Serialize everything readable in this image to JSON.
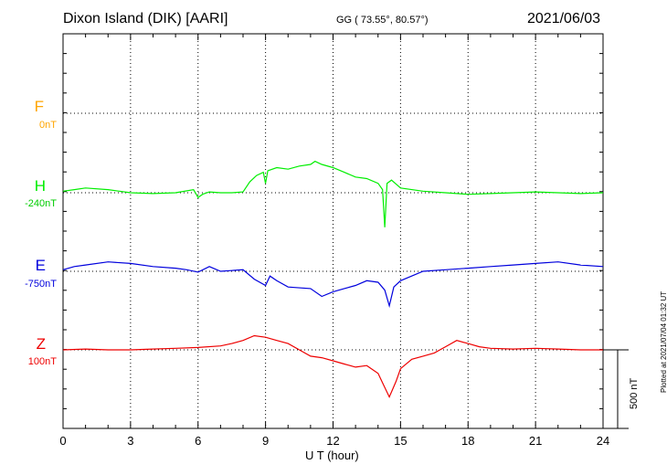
{
  "header": {
    "station": "Dixon Island (DIK)  [AARI]",
    "coords": "GG ( 73.55°,  80.57°)",
    "date": "2021/06/03"
  },
  "plotted_note": "Plotted at 2021/07/04 01:32 UT",
  "scale_bar_label": "500 nT",
  "chart_data": {
    "type": "line",
    "xlabel": "U T (hour)",
    "xlim": [
      0,
      24
    ],
    "xticks": [
      "0",
      "3",
      "6",
      "9",
      "12",
      "15",
      "18",
      "21",
      "24"
    ],
    "grid": true,
    "series": [
      {
        "name": "F",
        "baseline": "0nT",
        "color": "#ffa500",
        "x": [],
        "y": []
      },
      {
        "name": "H",
        "baseline": "-240nT",
        "color": "#00ee00",
        "x": [
          0,
          0.5,
          1,
          2,
          3,
          4,
          5,
          5.8,
          6,
          6.2,
          6.5,
          7,
          7.5,
          8,
          8.3,
          8.6,
          8.9,
          9.0,
          9.1,
          9.5,
          10,
          10.5,
          11,
          11.2,
          11.5,
          12,
          12.5,
          13,
          13.5,
          14,
          14.2,
          14.3,
          14.4,
          14.6,
          15,
          16,
          17,
          18,
          19,
          20,
          21,
          22,
          23,
          24
        ],
        "y": [
          10,
          20,
          30,
          20,
          0,
          -5,
          0,
          20,
          -30,
          -10,
          5,
          0,
          0,
          5,
          70,
          110,
          130,
          60,
          140,
          160,
          150,
          170,
          180,
          200,
          180,
          160,
          130,
          100,
          90,
          60,
          20,
          -220,
          60,
          80,
          30,
          10,
          0,
          -10,
          -5,
          0,
          5,
          0,
          -5,
          0
        ]
      },
      {
        "name": "E",
        "baseline": "-750nT",
        "color": "#0000dd",
        "x": [
          0,
          0.5,
          1,
          2,
          3,
          4,
          5,
          5.5,
          6,
          6.5,
          7,
          8,
          8.5,
          9,
          9.2,
          9.5,
          10,
          11,
          11.5,
          12,
          12.5,
          13,
          13.5,
          14,
          14.3,
          14.5,
          14.7,
          15,
          16,
          17,
          18,
          19,
          20,
          21,
          22,
          23,
          24
        ],
        "y": [
          10,
          30,
          40,
          60,
          50,
          30,
          20,
          10,
          -5,
          30,
          0,
          10,
          -50,
          -90,
          -30,
          -60,
          -100,
          -110,
          -160,
          -130,
          -110,
          -90,
          -60,
          -70,
          -120,
          -220,
          -100,
          -60,
          0,
          10,
          20,
          30,
          40,
          50,
          60,
          40,
          30
        ]
      },
      {
        "name": "Z",
        "baseline": "100nT",
        "color": "#ee0000",
        "x": [
          0,
          1,
          2,
          3,
          4,
          5,
          6,
          7,
          7.5,
          8,
          8.5,
          9,
          9.5,
          10,
          10.5,
          11,
          11.5,
          12,
          12.5,
          13,
          13.5,
          14,
          14.2,
          14.5,
          14.8,
          15,
          15.5,
          16,
          16.5,
          17,
          17.5,
          18,
          18.5,
          19,
          20,
          21,
          22,
          23,
          24
        ],
        "y": [
          0,
          5,
          0,
          0,
          5,
          10,
          15,
          25,
          40,
          60,
          90,
          80,
          60,
          40,
          0,
          -40,
          -50,
          -70,
          -90,
          -110,
          -100,
          -150,
          -210,
          -300,
          -200,
          -120,
          -60,
          -40,
          -20,
          20,
          60,
          40,
          20,
          10,
          5,
          10,
          5,
          0,
          0
        ]
      }
    ]
  }
}
